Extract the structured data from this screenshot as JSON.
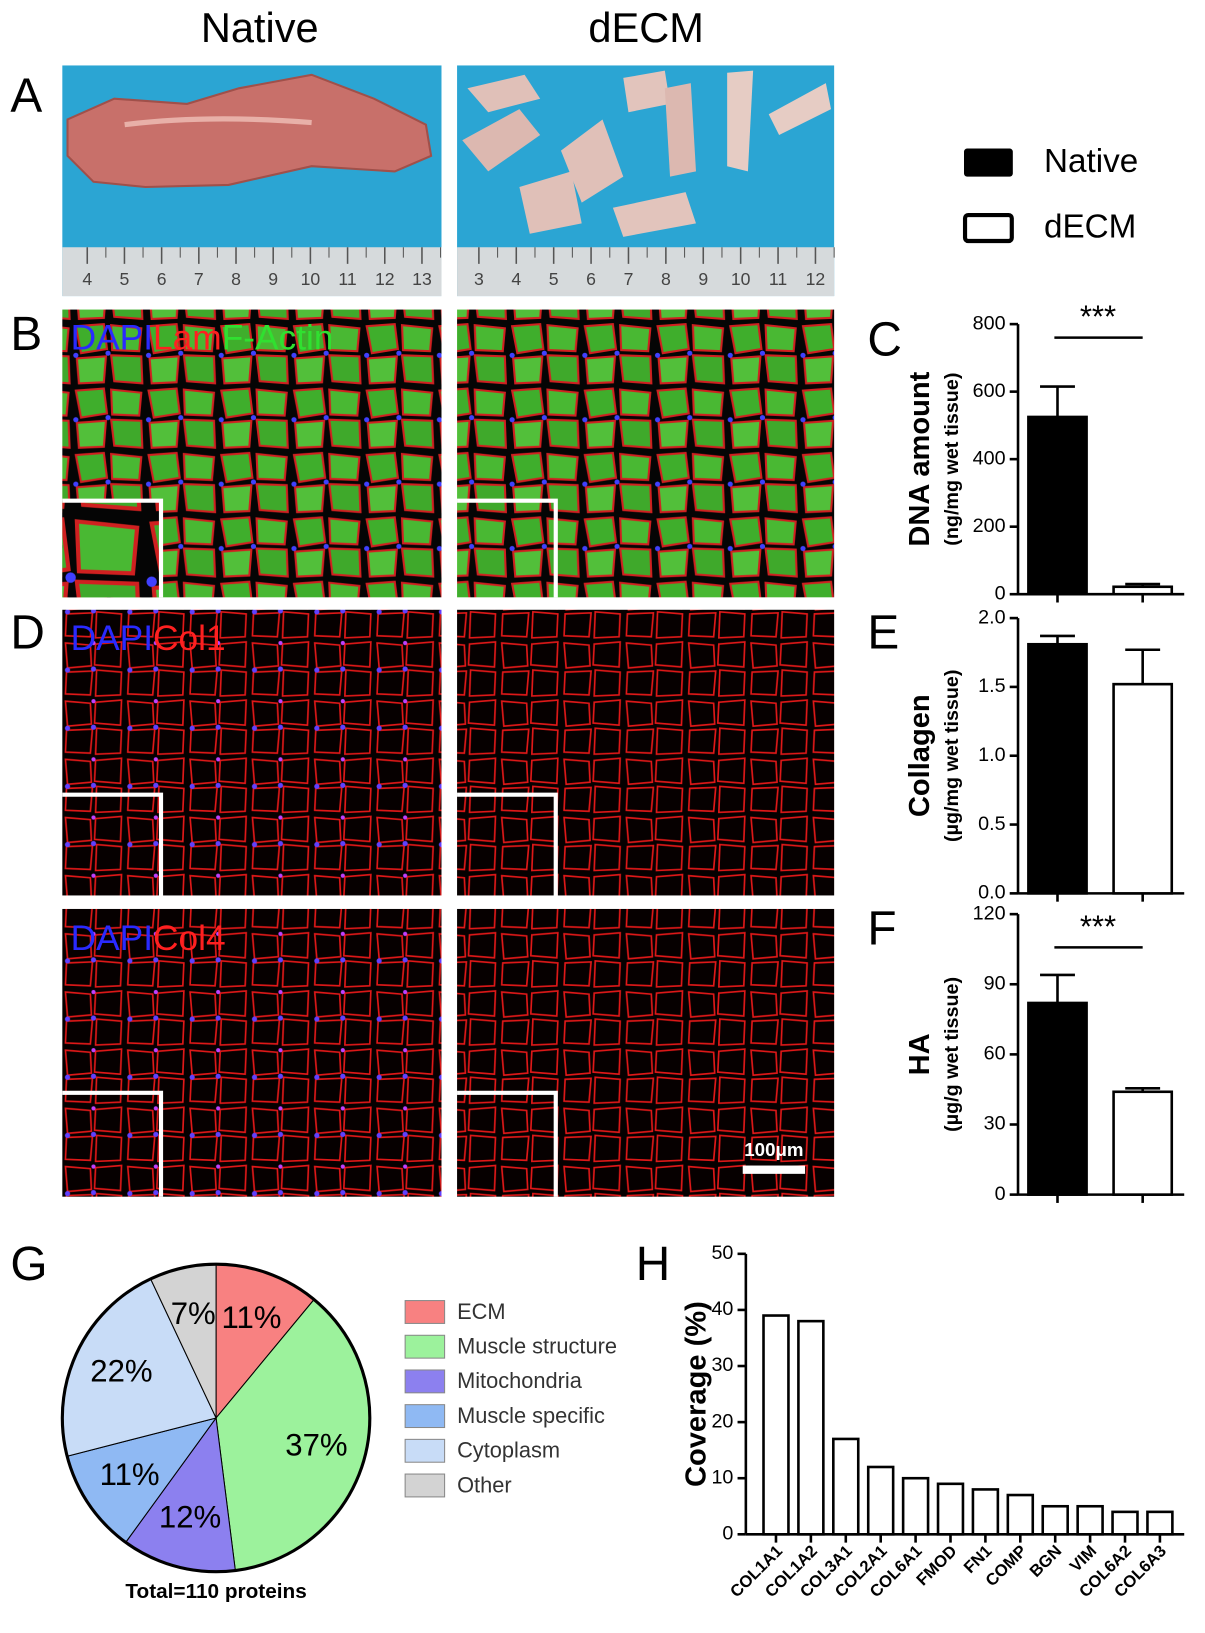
{
  "figure": {
    "columns": [
      "Native",
      "dECM"
    ],
    "panels": [
      "A",
      "B",
      "D"
    ],
    "ruler": {
      "native": [
        4,
        5,
        6,
        7,
        8,
        9,
        10,
        11,
        12,
        13
      ],
      "decm": [
        3,
        4,
        5,
        6,
        7,
        8,
        9,
        10,
        11,
        12
      ]
    },
    "stains": {
      "B": [
        "DAPI",
        "Lam",
        "F-Actin"
      ],
      "D1": [
        "DAPI",
        "Col1"
      ],
      "D2": [
        "DAPI",
        "Col4"
      ]
    },
    "scale_bar": "100μm",
    "legend": [
      "Native",
      "dECM"
    ]
  },
  "chart_data": [
    {
      "type": "bar",
      "label": "C",
      "ylabel": "DNA amount",
      "ylabel_sub": "(ng/mg wet tissue)",
      "categories": [
        null,
        null
      ],
      "values": [
        525,
        22
      ],
      "errors": [
        90,
        8
      ],
      "colors": [
        "#000000",
        "#ffffff"
      ],
      "ylim": [
        0,
        800
      ],
      "yticks": [
        0,
        200,
        400,
        600,
        800
      ],
      "significance": "***"
    },
    {
      "type": "bar",
      "label": "E",
      "ylabel": "Collagen",
      "ylabel_sub": "(µg/mg wet tissue)",
      "categories": [
        null,
        null
      ],
      "values": [
        1.81,
        1.52
      ],
      "errors": [
        0.06,
        0.25
      ],
      "colors": [
        "#000000",
        "#ffffff"
      ],
      "ylim": [
        0,
        2
      ],
      "yticks": [
        {
          "value": 0,
          "label": "0.0"
        },
        {
          "value": 0.5,
          "label": "0.5"
        },
        {
          "value": 1,
          "label": "1.0"
        },
        {
          "value": 1.5,
          "label": "1.5"
        },
        {
          "value": 2,
          "label": "2.0"
        }
      ]
    },
    {
      "type": "bar",
      "label": "F",
      "ylabel": "HA",
      "ylabel_sub": "(µg/g wet tissue)",
      "categories": [
        null,
        null
      ],
      "values": [
        82,
        44
      ],
      "errors": [
        12,
        1.5
      ],
      "colors": [
        "#000000",
        "#ffffff"
      ],
      "ylim": [
        0,
        120
      ],
      "yticks": [
        0,
        30,
        60,
        90,
        120
      ],
      "significance": "***"
    },
    {
      "type": "pie",
      "label": "G",
      "caption": "Total=110 proteins",
      "categories": [
        "ECM",
        "Muscle structure",
        "Mitochondria",
        "Muscle specific",
        "Cytoplasm",
        "Other"
      ],
      "values": [
        11,
        37,
        12,
        11,
        22,
        7
      ],
      "value_labels": [
        "11%",
        "37%",
        "12%",
        "11%",
        "22%",
        "7%"
      ],
      "colors": [
        "#f88181",
        "#9cf29c",
        "#8c80ef",
        "#8fb9f3",
        "#c8dcf7",
        "#d3d3d3"
      ]
    },
    {
      "type": "bar",
      "label": "H",
      "ylabel": "Coverage (%)",
      "categories": [
        "COL1A1",
        "COL1A2",
        "COL3A1",
        "COL2A1",
        "COL6A1",
        "FMOD",
        "FN1",
        "COMP",
        "BGN",
        "VIM",
        "COL6A2",
        "COL6A3"
      ],
      "values": [
        39,
        38,
        17,
        12,
        10,
        9,
        8,
        7,
        5,
        5,
        4,
        4
      ],
      "color": "#ffffff",
      "ylim": [
        0,
        50
      ],
      "yticks": [
        0,
        10,
        20,
        30,
        40,
        50
      ]
    }
  ]
}
